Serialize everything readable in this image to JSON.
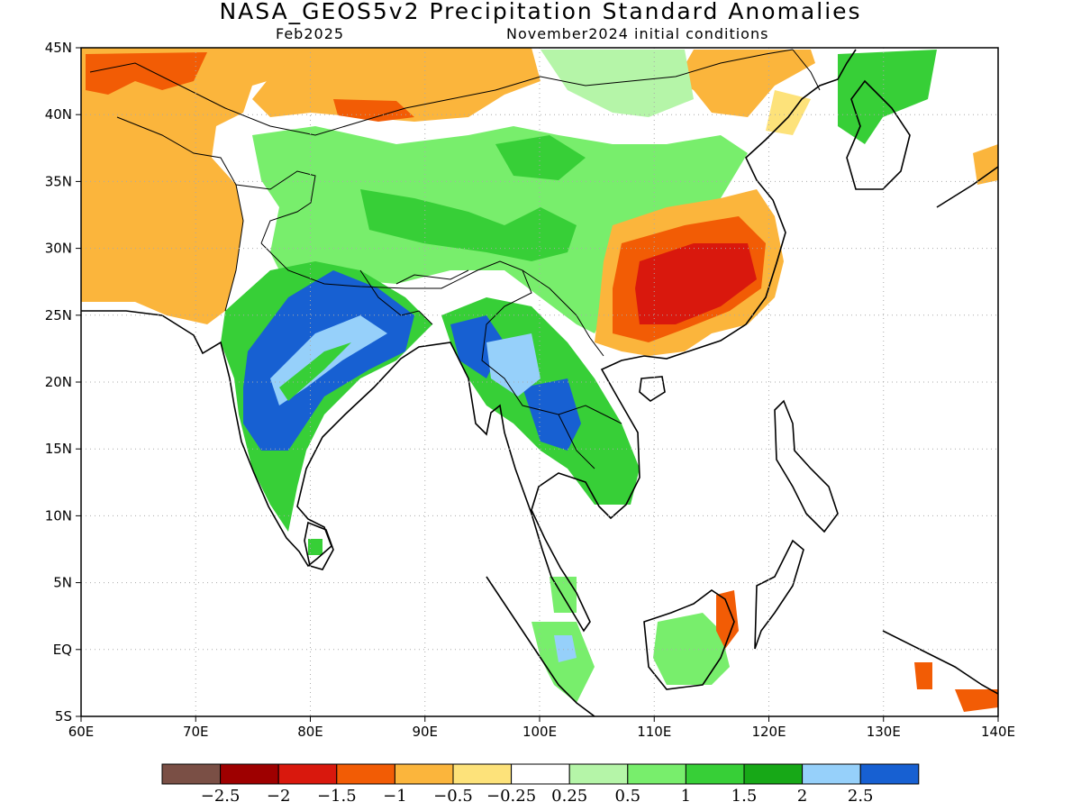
{
  "title": "NASA_GEOS5v2 Precipitation Standard Anomalies",
  "subtitle_left": "Feb2025",
  "subtitle_right": "November2024 initial conditions",
  "map": {
    "lon_range": [
      60,
      140
    ],
    "lat_range": [
      -5,
      45
    ],
    "x_ticks": [
      {
        "value": 60,
        "label": "60E"
      },
      {
        "value": 70,
        "label": "70E"
      },
      {
        "value": 80,
        "label": "80E"
      },
      {
        "value": 90,
        "label": "90E"
      },
      {
        "value": 100,
        "label": "100E"
      },
      {
        "value": 110,
        "label": "110E"
      },
      {
        "value": 120,
        "label": "120E"
      },
      {
        "value": 130,
        "label": "130E"
      },
      {
        "value": 140,
        "label": "140E"
      }
    ],
    "y_ticks": [
      {
        "value": 45,
        "label": "45N"
      },
      {
        "value": 40,
        "label": "40N"
      },
      {
        "value": 35,
        "label": "35N"
      },
      {
        "value": 30,
        "label": "30N"
      },
      {
        "value": 25,
        "label": "25N"
      },
      {
        "value": 20,
        "label": "20N"
      },
      {
        "value": 15,
        "label": "15N"
      },
      {
        "value": 10,
        "label": "10N"
      },
      {
        "value": 5,
        "label": "5N"
      },
      {
        "value": 0,
        "label": "EQ"
      },
      {
        "value": -5,
        "label": "5S"
      }
    ]
  },
  "colorbar": {
    "colors": [
      "#7a4f45",
      "#9e0000",
      "#d9180d",
      "#f25c05",
      "#fbb53c",
      "#fde27a",
      "#ffffff",
      "#b5f5a8",
      "#78ee6c",
      "#37cf37",
      "#17a817",
      "#96d0fa",
      "#1760d2"
    ],
    "labels": [
      "−2.5",
      "−2",
      "−1.5",
      "−1",
      "−0.5",
      "−0.25",
      "0.25",
      "0.5",
      "1",
      "1.5",
      "2",
      "2.5"
    ]
  }
}
